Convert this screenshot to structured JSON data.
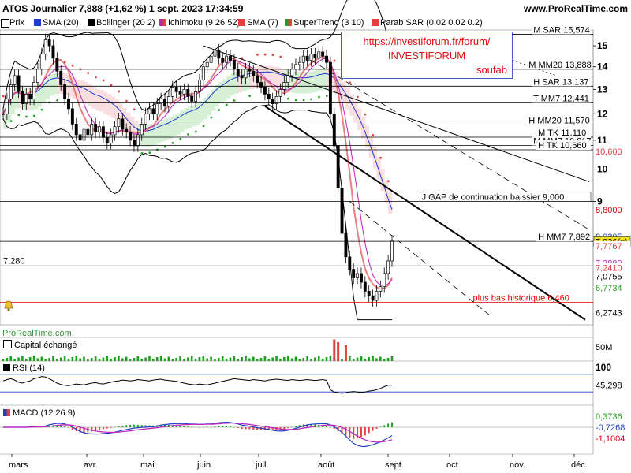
{
  "header": {
    "title": "ATOS Journalier 7,888 (+1,62 %) 1 sept. 2023 17:34:59",
    "site": "www.ProRealTime.com"
  },
  "legend": [
    {
      "label": "Prix",
      "color": "#000000"
    },
    {
      "label": "SMA (20)",
      "color": "#1e3ccd"
    },
    {
      "label": "Bollinger (20 2)",
      "color": "#000000"
    },
    {
      "label": "Ichimoku (9 26 52)",
      "color": "#c020c0"
    },
    {
      "label": "SMA (7)",
      "color": "#e04040"
    },
    {
      "label": "SuperTrend (3 10)",
      "color": "#20a020"
    },
    {
      "label": "Parab SAR (0.02 0.02 0.2)",
      "color": "#e04040"
    }
  ],
  "annotation": {
    "line1": "https://investiforum.fr/forum/",
    "line2": "INVESTIFORUM",
    "line3": "soufab"
  },
  "watermark": "ProRealTime.com",
  "alarm_icon": "bell-icon",
  "colors": {
    "candle": "#000000",
    "sma20": "#1e3ccd",
    "bollinger": "#000000",
    "tenkan": "#c020c0",
    "kijun": "#e04040",
    "sma7": "#e06060",
    "supertrend": "#20a020",
    "sar": "#e04040",
    "cloud_bull": "#d6f0d6",
    "cloud_bear": "#f8dede",
    "hline_red": "#e00000",
    "macd_line": "#2040c0",
    "macd_signal": "#c020c0"
  },
  "chart_data": [
    {
      "type": "candlestick",
      "title": "ATOS Journalier",
      "x_tick_labels": [
        "mars",
        "avr.",
        "mai",
        "juin",
        "juil.",
        "août",
        "sept.",
        "oct.",
        "nov.",
        "déc."
      ],
      "y_ticks": [
        9,
        10,
        11,
        12,
        13,
        14,
        15
      ],
      "y_tick_labels": [
        "9",
        "10",
        "11",
        "12",
        "13",
        "14",
        "15"
      ],
      "ylim": [
        6.0,
        15.8
      ],
      "y_scale": "log",
      "close_series": [
        12.0,
        12.6,
        13.2,
        13.6,
        12.9,
        12.4,
        12.8,
        12.6,
        13.3,
        13.9,
        14.6,
        15.3,
        15.0,
        14.4,
        13.8,
        13.2,
        12.6,
        12.2,
        11.6,
        11.2,
        11.0,
        11.4,
        11.2,
        11.6,
        11.3,
        11.5,
        11.1,
        10.9,
        11.2,
        11.5,
        11.8,
        11.4,
        11.3,
        11.0,
        10.8,
        11.2,
        11.6,
        12.0,
        12.2,
        12.0,
        12.4,
        12.6,
        12.3,
        12.7,
        13.1,
        12.9,
        12.8,
        13.0,
        12.7,
        12.5,
        12.9,
        13.4,
        14.0,
        14.2,
        14.5,
        14.8,
        14.4,
        14.2,
        14.5,
        14.3,
        13.9,
        13.6,
        13.5,
        13.9,
        13.8,
        13.6,
        13.3,
        13.1,
        12.8,
        12.6,
        12.4,
        12.7,
        13.0,
        13.3,
        13.6,
        13.9,
        14.1,
        14.2,
        14.5,
        14.3,
        14.6,
        14.4,
        14.7,
        14.5,
        14.2,
        12.0,
        10.8,
        9.4,
        8.1,
        7.5,
        7.2,
        7.0,
        7.1,
        6.9,
        6.7,
        6.6,
        6.5,
        6.7,
        6.8,
        7.1,
        7.4,
        7.9
      ],
      "horizontal_levels": [
        {
          "label": "M SAR 15,574",
          "value": 15.574
        },
        {
          "label": "M MM20 13,888",
          "value": 13.888
        },
        {
          "label": "H SAR 13,137",
          "value": 13.137
        },
        {
          "label": "T MM7 12,441",
          "value": 12.441
        },
        {
          "label": "H MM20 11,570",
          "value": 11.57
        },
        {
          "label": "M TK 11,110",
          "value": 11.11
        },
        {
          "label": "M MM7 10,817",
          "value": 10.817
        },
        {
          "label": "H TK 10,660",
          "value": 10.66
        },
        {
          "label": "J GAP de continuation baissier 9,000",
          "value": 9.0
        },
        {
          "label": "H MM7 7,892",
          "value": 7.892
        },
        {
          "label": "7,280",
          "value": 7.28
        },
        {
          "label": "plus bas historique 6,460",
          "value": 6.46
        }
      ],
      "right_axis_tags": [
        {
          "label": "10,600",
          "value": 10.6,
          "color": "#e04040"
        },
        {
          "label": "8,8000",
          "value": 8.8,
          "color": "#e00000"
        },
        {
          "label": "8,0205",
          "value": 8.0205,
          "color": "#2040c0"
        },
        {
          "label": "7,926(p)",
          "value": 7.926,
          "color": "#000000"
        },
        {
          "label": "7,7767",
          "value": 7.7767,
          "color": "#e04040"
        },
        {
          "label": "7,3880",
          "value": 7.388,
          "color": "#c020c0"
        },
        {
          "label": "7,2410",
          "value": 7.241,
          "color": "#e04040"
        },
        {
          "label": "7,0755",
          "value": 7.0755,
          "color": "#000000"
        },
        {
          "label": "6,7734",
          "value": 6.7734,
          "color": "#20a020"
        },
        {
          "label": "6,2743",
          "value": 6.2743,
          "color": "#000000"
        }
      ]
    },
    {
      "type": "bar",
      "title": "Capital échangé",
      "ytick": "50M",
      "highlight_bars": [
        {
          "index": 86,
          "value": 55,
          "color": "#e04040"
        },
        {
          "index": 87,
          "value": 48,
          "color": "#e04040"
        },
        {
          "index": 89,
          "value": 40,
          "color": "#e04040"
        }
      ]
    },
    {
      "type": "line",
      "title": "RSI (14)",
      "ylim": [
        0,
        100
      ],
      "y_tick_labels": [
        "100"
      ],
      "last_value_label": "45,298",
      "values": [
        55,
        58,
        60,
        57,
        52,
        50,
        53,
        55,
        60,
        62,
        65,
        64,
        60,
        55,
        50,
        47,
        45,
        44,
        46,
        48,
        47,
        46,
        48,
        50,
        51,
        49,
        48,
        50,
        52,
        54,
        55,
        57,
        56,
        55,
        56,
        58,
        57,
        56,
        55,
        57,
        58,
        59,
        57,
        56,
        55,
        54,
        52,
        50,
        48,
        47,
        46,
        48,
        47,
        46,
        48,
        50,
        52,
        54,
        56,
        58,
        60,
        59,
        58,
        57,
        56,
        58,
        57,
        56,
        55,
        57,
        58,
        59,
        58,
        57,
        56,
        58,
        57,
        56,
        57,
        58,
        57,
        56,
        57,
        58,
        56,
        35,
        30,
        28,
        27,
        28,
        30,
        31,
        30,
        29,
        30,
        32,
        33,
        35,
        38,
        42,
        45,
        45.3
      ]
    },
    {
      "type": "line",
      "title": "MACD (12 26 9)",
      "last_value_labels": [
        {
          "label": "0,3736",
          "color": "#20a020"
        },
        {
          "label": "-0,7268",
          "color": "#2040c0"
        },
        {
          "label": "-1,1004",
          "color": "#e00000"
        }
      ]
    }
  ]
}
